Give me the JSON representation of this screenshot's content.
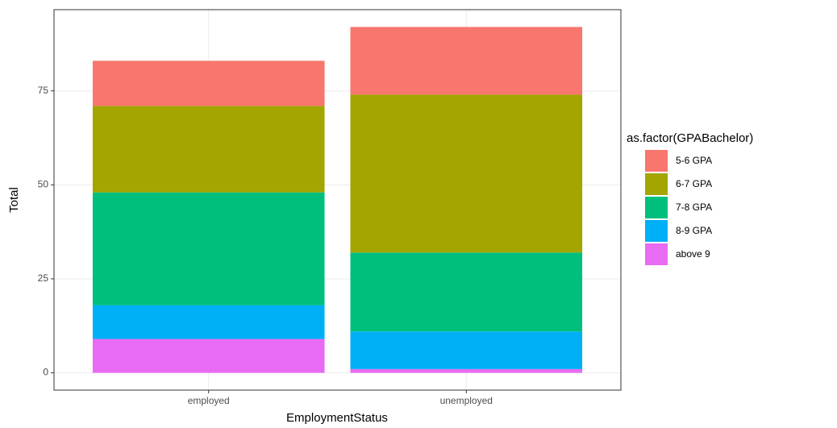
{
  "chart_data": {
    "type": "stacked_bar",
    "x_label": "EmploymentStatus",
    "y_label": "Total",
    "legend_title": "as.factor(GPABachelor)",
    "categories": [
      "employed",
      "unemployed"
    ],
    "series": [
      {
        "name": "5-6 GPA",
        "color": "#f8766d",
        "values": [
          12,
          18
        ]
      },
      {
        "name": "6-7 GPA",
        "color": "#a3a500",
        "values": [
          23,
          42
        ]
      },
      {
        "name": "7-8 GPA",
        "color": "#00bf7d",
        "values": [
          30,
          21
        ]
      },
      {
        "name": "8-9 GPA",
        "color": "#00b0f6",
        "values": [
          9,
          10
        ]
      },
      {
        "name": "above 9",
        "color": "#e76bf3",
        "values": [
          9,
          1
        ]
      }
    ],
    "ylim": [
      -4.6,
      96.6
    ],
    "yticks": [
      0,
      25,
      50,
      75
    ],
    "grid": true,
    "legend": "right"
  }
}
